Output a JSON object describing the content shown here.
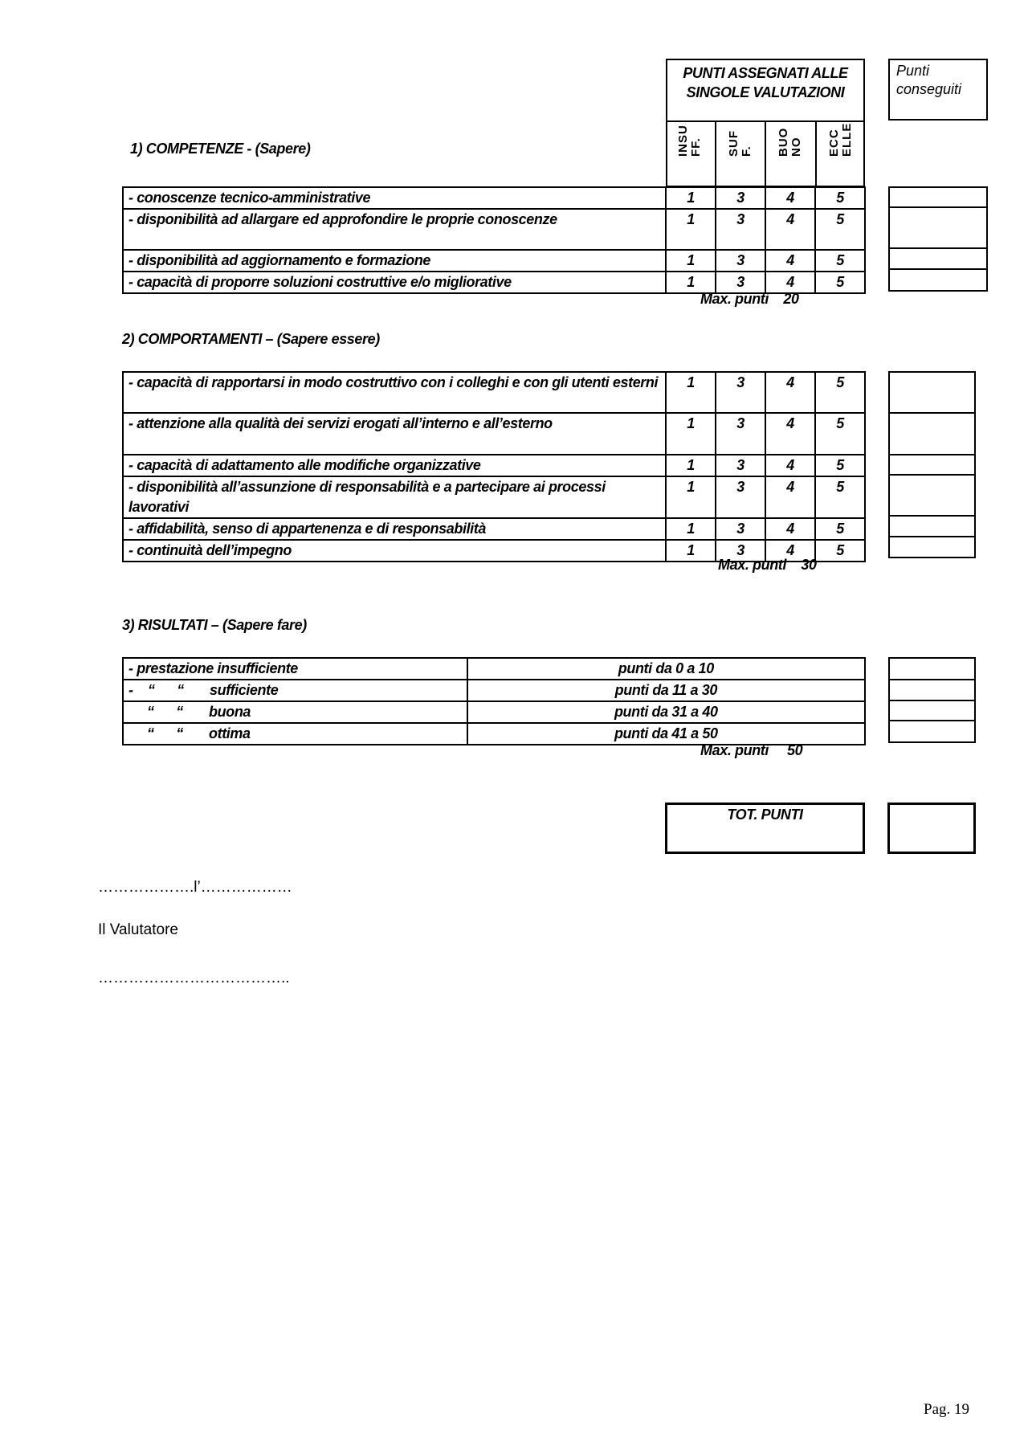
{
  "header": {
    "points_title": "PUNTI ASSEGNATI ALLE SINGOLE VALUTAZIONI",
    "columns": [
      "INSU\nFF.",
      "SUF\nF.",
      "BUO\nNO",
      "ECC\nELLE"
    ],
    "achieved_title": "Punti conseguiti"
  },
  "sections": [
    {
      "title": "1) COMPETENZE  -  (Sapere)",
      "max": "Max. punti    20",
      "rows": [
        {
          "label": "- conoscenze tecnico-amministrative",
          "scores": [
            "1",
            "3",
            "4",
            "5"
          ]
        },
        {
          "label": "- disponibilità ad allargare ed approfondire le proprie conoscenze",
          "scores": [
            "1",
            "3",
            "4",
            "5"
          ]
        },
        {
          "label": "- disponibilità ad aggiornamento e formazione",
          "scores": [
            "1",
            "3",
            "4",
            "5"
          ]
        },
        {
          "label": "- capacità di proporre soluzioni costruttive e/o migliorative",
          "scores": [
            "1",
            "3",
            "4",
            "5"
          ]
        }
      ]
    },
    {
      "title": "2) COMPORTAMENTI – (Sapere essere)",
      "max": "Max. puntl    30",
      "rows": [
        {
          "label": "- capacità di rapportarsi in modo costruttivo con i colleghi e con gli utenti esterni",
          "scores": [
            "1",
            "3",
            "4",
            "5"
          ]
        },
        {
          "label": "- attenzione alla qualità dei servizi erogati all’interno e all’esterno",
          "scores": [
            "1",
            "3",
            "4",
            "5"
          ]
        },
        {
          "label": "- capacità di adattamento alle modifiche organizzative",
          "scores": [
            "1",
            "3",
            "4",
            "5"
          ]
        },
        {
          "label": "- disponibilità all’assunzione di responsabilità e a partecipare ai processi lavorativi",
          "scores": [
            "1",
            "3",
            "4",
            "5"
          ]
        },
        {
          "label": "- affidabilità, senso di appartenenza e di responsabilità",
          "scores": [
            "1",
            "3",
            "4",
            "5"
          ]
        },
        {
          "label": "- continuità dell’impegno",
          "scores": [
            "1",
            "3",
            "4",
            "5"
          ]
        }
      ]
    },
    {
      "title": "3) RISULTATI – (Sapere fare)",
      "max": "Max. punti     50",
      "rows": [
        {
          "label": "- prestazione insufficiente",
          "range": "punti da 0 a 10"
        },
        {
          "label": "-    “      “       sufficiente",
          "range": "punti da 11 a 30"
        },
        {
          "label": "     “      “       buona",
          "range": "punti da 31 a 40"
        },
        {
          "label": "     “      “       ottima",
          "range": "punti da 41 a 50"
        }
      ]
    }
  ],
  "total_label": "TOT. PUNTI",
  "footer": {
    "place_date": "……………….l’………………",
    "evaluator": "Il Valutatore",
    "signature": "……………………………….."
  },
  "page_number": "Pag. 19"
}
